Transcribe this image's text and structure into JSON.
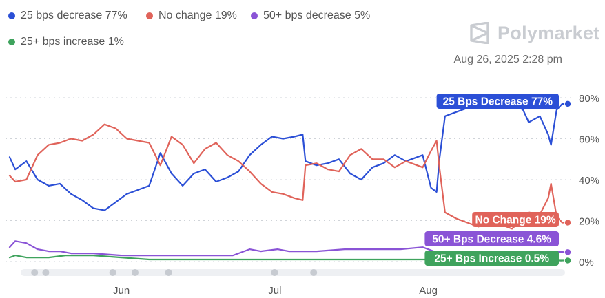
{
  "legend": [
    {
      "label": "25 bps decrease 77%",
      "color": "#2b4fd6"
    },
    {
      "label": "No change 19%",
      "color": "#e0635a"
    },
    {
      "label": "50+ bps decrease 5%",
      "color": "#8a54d6"
    },
    {
      "label": "25+ bps increase 1%",
      "color": "#3fa35d"
    }
  ],
  "brand": {
    "name": "Polymarket",
    "icon": "polymarket-logo-icon"
  },
  "timestamp": "Aug 26, 2025 2:28 pm",
  "chart_data": {
    "type": "line",
    "title": "",
    "xlabel": "",
    "ylabel": "",
    "ylim": [
      0,
      80
    ],
    "y_ticks": [
      "80%",
      "60%",
      "40%",
      "20%",
      "0%"
    ],
    "y_tick_values": [
      80,
      60,
      40,
      20,
      0
    ],
    "x_ticks": [
      {
        "label": "Jun",
        "t": 0.21
      },
      {
        "label": "Jul",
        "t": 0.485
      },
      {
        "label": "Aug",
        "t": 0.76
      }
    ],
    "grid": true,
    "series": [
      {
        "name": "25 bps decrease",
        "color": "#2b4fd6",
        "end_label": "25 Bps Decrease 77%",
        "t": [
          0,
          0.01,
          0.03,
          0.05,
          0.07,
          0.09,
          0.11,
          0.13,
          0.15,
          0.17,
          0.19,
          0.21,
          0.23,
          0.25,
          0.27,
          0.29,
          0.31,
          0.33,
          0.35,
          0.37,
          0.39,
          0.41,
          0.43,
          0.45,
          0.47,
          0.49,
          0.51,
          0.525,
          0.53,
          0.55,
          0.57,
          0.59,
          0.61,
          0.63,
          0.65,
          0.67,
          0.69,
          0.71,
          0.73,
          0.74,
          0.755,
          0.765,
          0.77,
          0.78,
          0.8,
          0.82,
          0.84,
          0.86,
          0.88,
          0.9,
          0.92,
          0.93,
          0.95,
          0.965,
          0.97,
          0.98,
          0.99,
          1.0
        ],
        "values": [
          51,
          45,
          49,
          40,
          37,
          38,
          33,
          30,
          26,
          25,
          29,
          33,
          35,
          37,
          53,
          43,
          37,
          43,
          45,
          39,
          41,
          44,
          52,
          57,
          61,
          60,
          61,
          62,
          49,
          47,
          48,
          50,
          43,
          40,
          46,
          48,
          52,
          49,
          51,
          52,
          36,
          34,
          50,
          71,
          73,
          75,
          77,
          75,
          76,
          78,
          74,
          68,
          71,
          62,
          57,
          74,
          77,
          77
        ]
      },
      {
        "name": "No change",
        "color": "#e0635a",
        "end_label": "No Change 19%",
        "t": [
          0,
          0.01,
          0.03,
          0.05,
          0.07,
          0.09,
          0.11,
          0.13,
          0.15,
          0.17,
          0.19,
          0.21,
          0.23,
          0.25,
          0.27,
          0.29,
          0.31,
          0.33,
          0.35,
          0.37,
          0.39,
          0.41,
          0.43,
          0.45,
          0.47,
          0.49,
          0.51,
          0.525,
          0.53,
          0.55,
          0.57,
          0.59,
          0.61,
          0.63,
          0.65,
          0.67,
          0.69,
          0.71,
          0.73,
          0.74,
          0.755,
          0.765,
          0.77,
          0.78,
          0.8,
          0.82,
          0.84,
          0.86,
          0.88,
          0.9,
          0.92,
          0.93,
          0.95,
          0.965,
          0.97,
          0.98,
          0.99,
          1.0
        ],
        "values": [
          42,
          39,
          40,
          52,
          57,
          58,
          60,
          59,
          62,
          67,
          65,
          60,
          59,
          58,
          47,
          61,
          57,
          48,
          55,
          58,
          52,
          49,
          44,
          38,
          34,
          33,
          31,
          30,
          47,
          48,
          45,
          44,
          52,
          55,
          50,
          50,
          46,
          49,
          47,
          46,
          54,
          59,
          46,
          24,
          21,
          19,
          17,
          19,
          18,
          16,
          21,
          24,
          23,
          31,
          38,
          22,
          19,
          19
        ]
      },
      {
        "name": "50+ bps decrease",
        "color": "#8a54d6",
        "end_label": "50+ Bps Decrease 4.6%",
        "t": [
          0,
          0.01,
          0.03,
          0.05,
          0.07,
          0.09,
          0.11,
          0.13,
          0.15,
          0.2,
          0.25,
          0.3,
          0.35,
          0.4,
          0.43,
          0.45,
          0.48,
          0.5,
          0.55,
          0.6,
          0.65,
          0.7,
          0.74,
          0.76,
          0.8,
          0.85,
          0.9,
          0.95,
          1.0
        ],
        "values": [
          7,
          10,
          9,
          6,
          5,
          5,
          4,
          4,
          4,
          3,
          3,
          3,
          3,
          3,
          6,
          5,
          6,
          5,
          5,
          6,
          6,
          6,
          7,
          5,
          5,
          5,
          5,
          5,
          4.6
        ]
      },
      {
        "name": "25+ bps increase",
        "color": "#3fa35d",
        "end_label": "25+ Bps Increase 0.5%",
        "t": [
          0,
          0.01,
          0.03,
          0.05,
          0.07,
          0.1,
          0.15,
          0.2,
          0.25,
          0.3,
          0.35,
          0.4,
          0.45,
          0.5,
          0.55,
          0.6,
          0.65,
          0.7,
          0.75,
          0.8,
          0.85,
          0.9,
          0.95,
          1.0
        ],
        "values": [
          2,
          3,
          2,
          2,
          2,
          3,
          3,
          2,
          1,
          1,
          1,
          1,
          1,
          1,
          1,
          1,
          1,
          1,
          1,
          0.5,
          0.5,
          0.5,
          0.5,
          0.5
        ]
      }
    ],
    "scrubber_markers": [
      0.02,
      0.04,
      0.16,
      0.2,
      0.26,
      0.45,
      0.52
    ]
  }
}
